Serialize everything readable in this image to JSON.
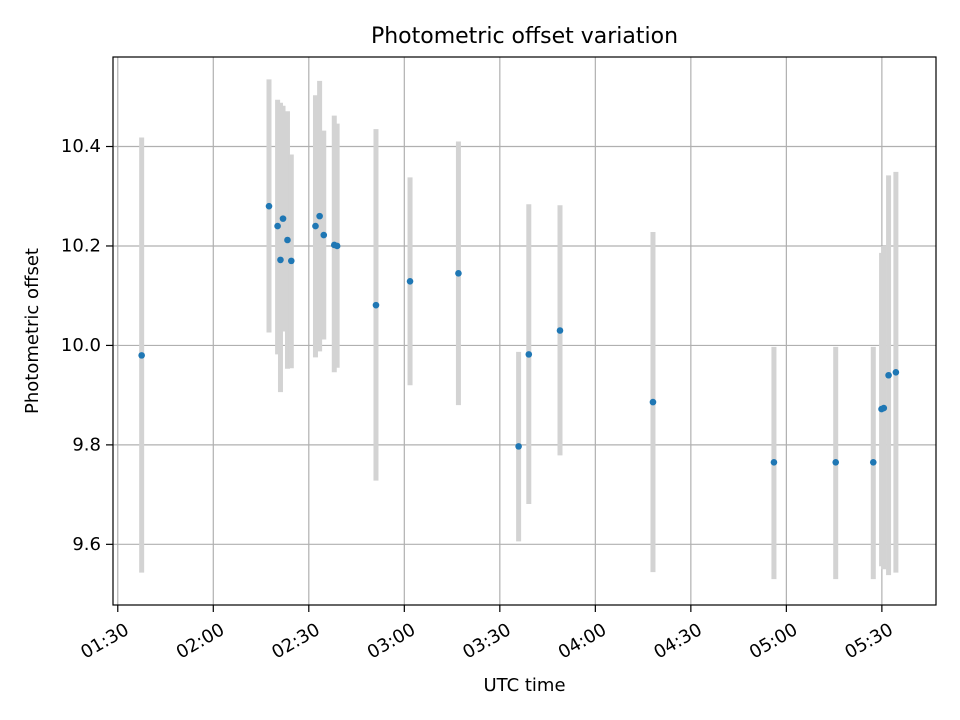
{
  "chart_data": {
    "type": "scatter",
    "title": "Photometric offset variation",
    "xlabel": "UTC time",
    "ylabel": "Photometric offset",
    "xlim": [
      88.5,
      347
    ],
    "ylim": [
      9.478,
      10.58
    ],
    "grid": true,
    "x_ticks": [
      {
        "value": 90,
        "label": "01:30"
      },
      {
        "value": 120,
        "label": "02:00"
      },
      {
        "value": 150,
        "label": "02:30"
      },
      {
        "value": 180,
        "label": "03:00"
      },
      {
        "value": 210,
        "label": "03:30"
      },
      {
        "value": 240,
        "label": "04:00"
      },
      {
        "value": 270,
        "label": "04:30"
      },
      {
        "value": 300,
        "label": "05:00"
      },
      {
        "value": 330,
        "label": "05:30"
      }
    ],
    "y_ticks": [
      {
        "value": 9.6,
        "label": "9.6"
      },
      {
        "value": 9.8,
        "label": "9.8"
      },
      {
        "value": 10.0,
        "label": "10.0"
      },
      {
        "value": 10.2,
        "label": "10.2"
      },
      {
        "value": 10.4,
        "label": "10.4"
      }
    ],
    "series": [
      {
        "name": "Photometric offset",
        "color": "#1f77b4",
        "error_color": "#d3d3d3",
        "points": [
          {
            "x": 97.5,
            "y": 9.98,
            "ylo": 9.543,
            "yhi": 10.418
          },
          {
            "x": 137.5,
            "y": 10.28,
            "ylo": 10.026,
            "yhi": 10.535
          },
          {
            "x": 140.2,
            "y": 10.24,
            "ylo": 9.982,
            "yhi": 10.494
          },
          {
            "x": 141.1,
            "y": 10.172,
            "ylo": 9.906,
            "yhi": 10.488
          },
          {
            "x": 141.9,
            "y": 10.255,
            "ylo": 10.028,
            "yhi": 10.482
          },
          {
            "x": 143.3,
            "y": 10.212,
            "ylo": 9.953,
            "yhi": 10.471
          },
          {
            "x": 144.5,
            "y": 10.17,
            "ylo": 9.954,
            "yhi": 10.384
          },
          {
            "x": 152.1,
            "y": 10.24,
            "ylo": 9.976,
            "yhi": 10.503
          },
          {
            "x": 153.4,
            "y": 10.26,
            "ylo": 9.988,
            "yhi": 10.532
          },
          {
            "x": 154.7,
            "y": 10.222,
            "ylo": 10.012,
            "yhi": 10.432
          },
          {
            "x": 158.0,
            "y": 10.202,
            "ylo": 9.946,
            "yhi": 10.462
          },
          {
            "x": 158.9,
            "y": 10.2,
            "ylo": 9.955,
            "yhi": 10.446
          },
          {
            "x": 171.1,
            "y": 10.081,
            "ylo": 9.728,
            "yhi": 10.435
          },
          {
            "x": 181.8,
            "y": 10.129,
            "ylo": 9.92,
            "yhi": 10.338
          },
          {
            "x": 197.0,
            "y": 10.145,
            "ylo": 9.88,
            "yhi": 10.41
          },
          {
            "x": 215.9,
            "y": 9.797,
            "ylo": 9.606,
            "yhi": 9.987
          },
          {
            "x": 219.1,
            "y": 9.982,
            "ylo": 9.681,
            "yhi": 10.284
          },
          {
            "x": 228.9,
            "y": 10.03,
            "ylo": 9.779,
            "yhi": 10.282
          },
          {
            "x": 258.1,
            "y": 9.886,
            "ylo": 9.544,
            "yhi": 10.228
          },
          {
            "x": 296.1,
            "y": 9.765,
            "ylo": 9.53,
            "yhi": 9.997
          },
          {
            "x": 315.5,
            "y": 9.765,
            "ylo": 9.53,
            "yhi": 9.997
          },
          {
            "x": 327.3,
            "y": 9.765,
            "ylo": 9.53,
            "yhi": 9.997
          },
          {
            "x": 329.9,
            "y": 9.872,
            "ylo": 9.556,
            "yhi": 10.186
          },
          {
            "x": 330.6,
            "y": 9.874,
            "ylo": 9.55,
            "yhi": 10.2
          },
          {
            "x": 332.1,
            "y": 9.94,
            "ylo": 9.538,
            "yhi": 10.342
          },
          {
            "x": 334.4,
            "y": 9.946,
            "ylo": 9.543,
            "yhi": 10.349
          }
        ]
      }
    ]
  }
}
